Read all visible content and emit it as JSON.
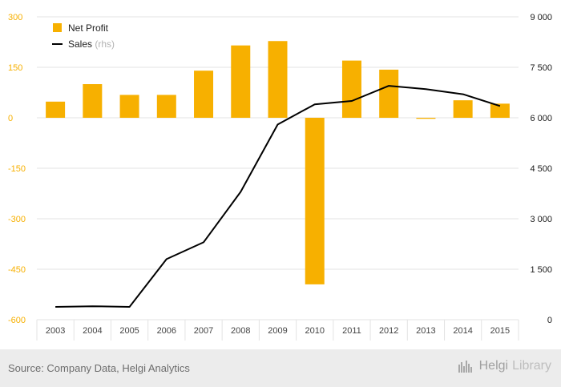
{
  "chart_data": {
    "type": "bar+line",
    "categories": [
      "2003",
      "2004",
      "2005",
      "2006",
      "2007",
      "2008",
      "2009",
      "2010",
      "2011",
      "2012",
      "2013",
      "2014",
      "2015"
    ],
    "series": [
      {
        "name": "Net Profit",
        "type": "bar",
        "axis": "left",
        "color": "#f7b000",
        "values": [
          48,
          100,
          68,
          68,
          140,
          215,
          228,
          -495,
          170,
          143,
          -3,
          52,
          42
        ]
      },
      {
        "name": "Sales",
        "type": "line",
        "axis": "right",
        "color": "#000000",
        "values": [
          380,
          400,
          380,
          1800,
          2300,
          3800,
          5800,
          6400,
          6500,
          6950,
          6850,
          6700,
          6350
        ]
      }
    ],
    "y_left": {
      "min": -600,
      "max": 300,
      "ticks": [
        "300",
        "150",
        "0",
        "-150",
        "-300",
        "-450",
        "-600"
      ],
      "tick_color": "#f7b000"
    },
    "y_right": {
      "min": 0,
      "max": 9000,
      "ticks": [
        "9 000",
        "7 500",
        "6 000",
        "4 500",
        "3 000",
        "1 500",
        "0"
      ]
    },
    "legend": [
      {
        "label": "Net Profit",
        "suffix": ""
      },
      {
        "label": "Sales",
        "suffix": "(rhs)"
      }
    ],
    "legend_position": "top-left"
  },
  "footer": {
    "source": "Source: Company Data, Helgi Analytics",
    "brand_main": "Helgi",
    "brand_light": "Library"
  }
}
